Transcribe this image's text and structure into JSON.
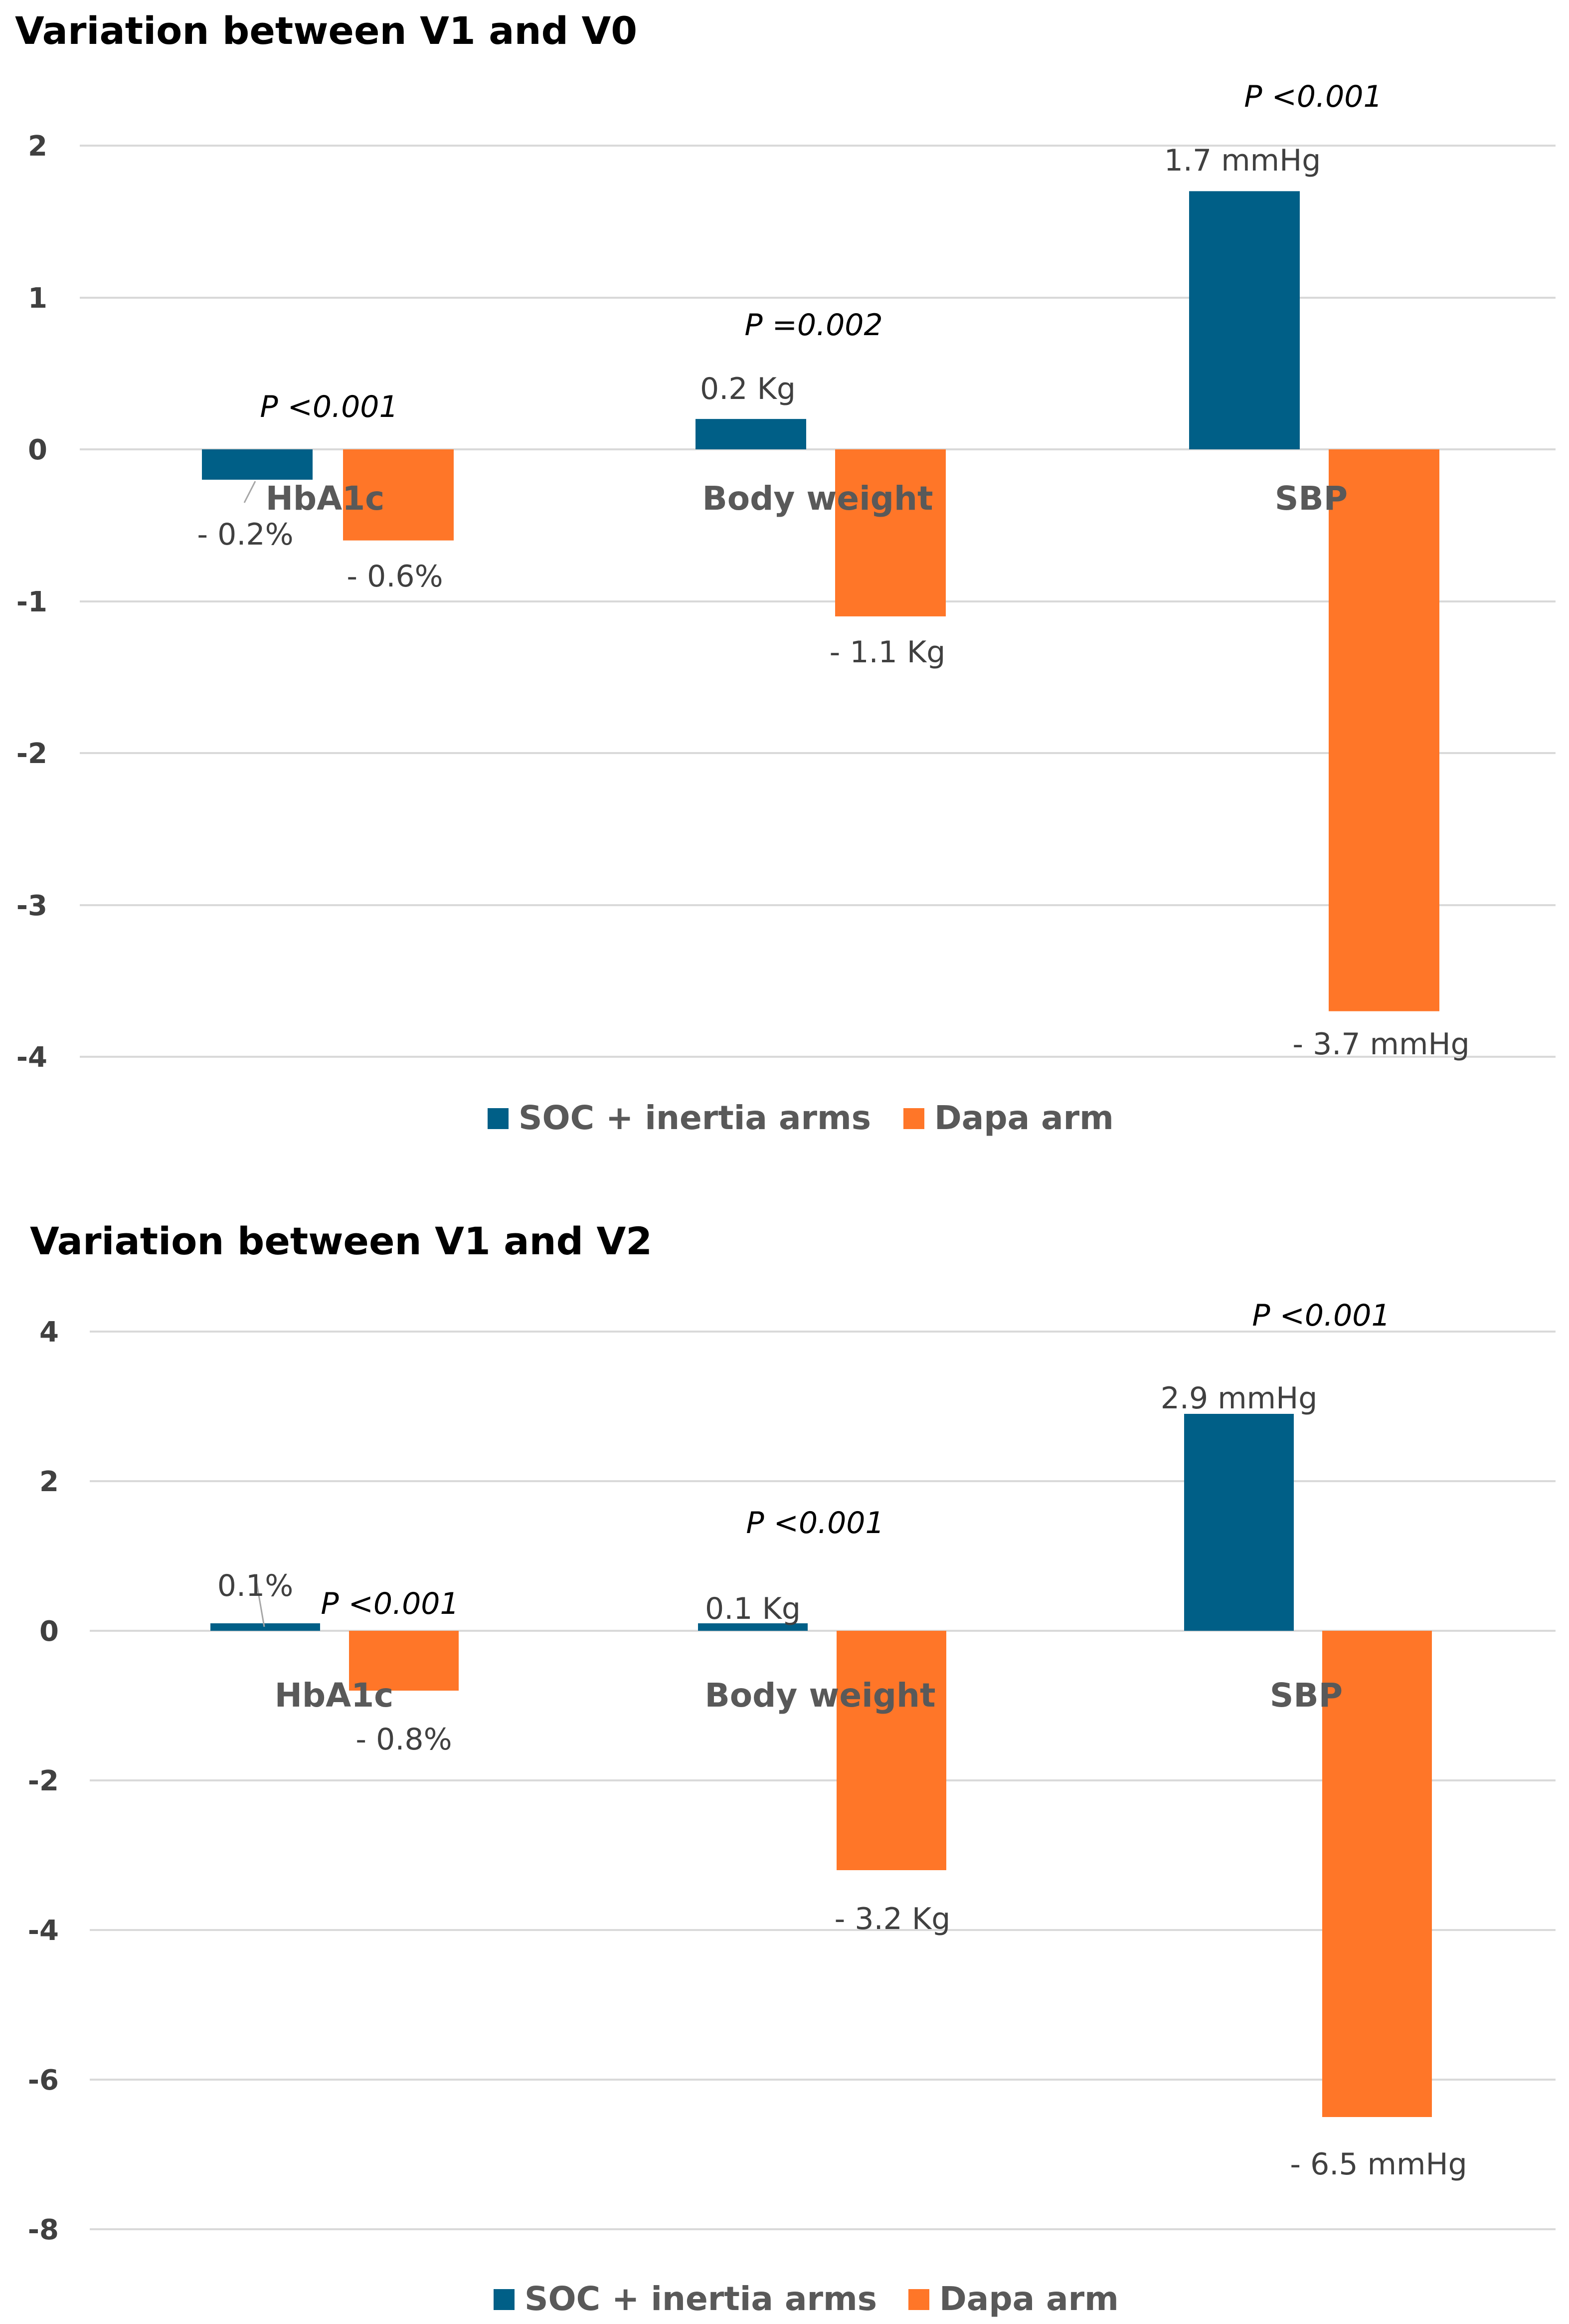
{
  "chart_data": [
    {
      "type": "bar",
      "title": "Variation between V1 and V0",
      "categories": [
        "HbA1c",
        "Body weight",
        "SBP"
      ],
      "series": [
        {
          "name": "SOC + inertia arms",
          "color": "#005F87",
          "values": [
            -0.2,
            0.2,
            1.7
          ],
          "labels": [
            "- 0.2%",
            "0.2 Kg",
            "1.7 mmHg"
          ]
        },
        {
          "name": "Dapa arm",
          "color": "#FF7628",
          "values": [
            -0.6,
            -1.1,
            -3.7
          ],
          "labels": [
            "- 0.6%",
            "- 1.1 Kg",
            "- 3.7 mmHg"
          ]
        }
      ],
      "annotations": [
        "P <0.001",
        "P =0.002",
        "P <0.001"
      ],
      "yticks": [
        "2",
        "1",
        "0",
        "-1",
        "-2",
        "-3",
        "-4"
      ],
      "ylim": [
        -4,
        2
      ],
      "grid": true,
      "legend": "bottom"
    },
    {
      "type": "bar",
      "title": "Variation between V1 and V2",
      "categories": [
        "HbA1c",
        "Body weight",
        "SBP"
      ],
      "series": [
        {
          "name": "SOC + inertia arms",
          "color": "#005F87",
          "values": [
            0.1,
            0.1,
            2.9
          ],
          "labels": [
            "0.1%",
            "0.1 Kg",
            "2.9 mmHg"
          ]
        },
        {
          "name": "Dapa arm",
          "color": "#FF7628",
          "values": [
            -0.8,
            -3.2,
            -6.5
          ],
          "labels": [
            "- 0.8%",
            "- 3.2 Kg",
            "- 6.5 mmHg"
          ]
        }
      ],
      "annotations": [
        "P <0.001",
        "P <0.001",
        "P <0.001"
      ],
      "yticks": [
        "4",
        "2",
        "0",
        "-2",
        "-4",
        "-6",
        "-8"
      ],
      "ylim": [
        -8,
        4
      ],
      "grid": true,
      "legend": "bottom"
    }
  ]
}
